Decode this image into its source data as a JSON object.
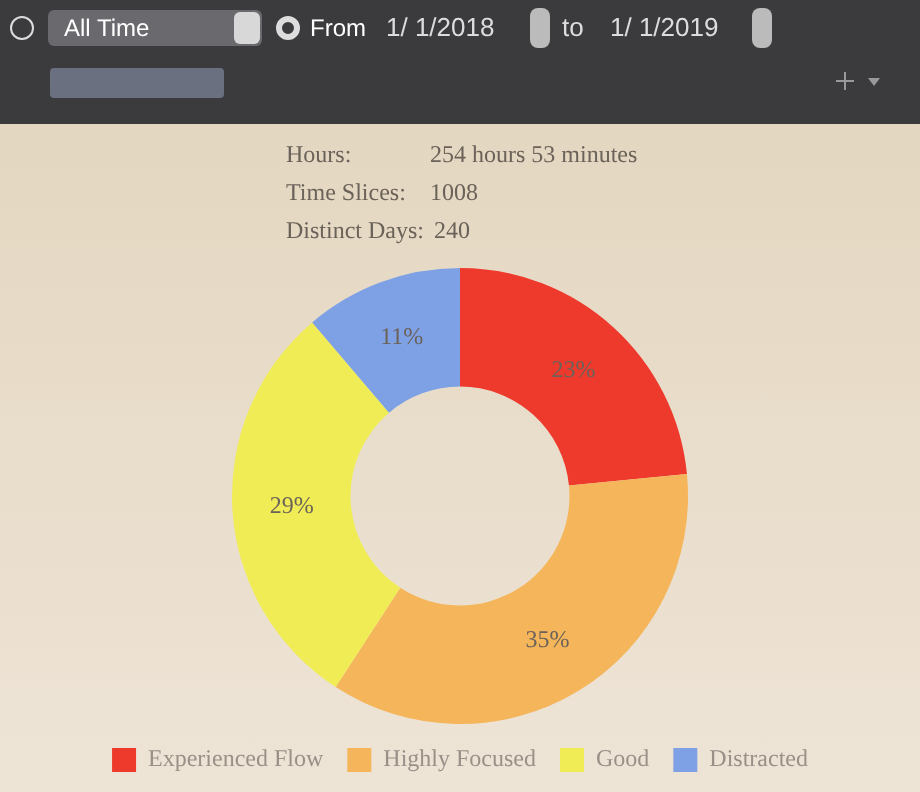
{
  "chart_data": {
    "type": "donut",
    "categories": [
      "Experienced Flow",
      "Highly Focused",
      "Good",
      "Distracted"
    ],
    "values": [
      23,
      35,
      29,
      11
    ],
    "colors": [
      "#ee3a2c",
      "#f5b55a",
      "#f0ec55",
      "#7ea1e6"
    ],
    "value_labels": [
      "23%",
      "35%",
      "29%",
      "11%"
    ],
    "legend": "bottom",
    "annotations": [
      "All Time",
      "From",
      "1/  1/2018",
      "to",
      "1/  1/2019",
      "Hours:",
      "254 hours 53 minutes",
      "Time Slices:",
      "1008",
      "Distinct Days:",
      "240"
    ]
  }
}
